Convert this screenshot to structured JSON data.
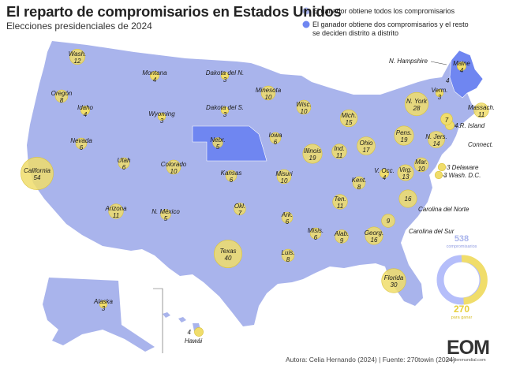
{
  "title": "El reparto de compromisarios en Estados Unidos",
  "subtitle": "Elecciones presidenciales de 2024",
  "legend": {
    "winner_all": "El ganador obtiene todos los compromisarios",
    "district": "El ganador obtiene dos compromisarios y el resto se deciden distrito a distrito"
  },
  "colors": {
    "map": "#a9b4ec",
    "map_border": "#ffffff",
    "district": "#6f86f1",
    "circle": "#f0dd6b",
    "circle_stroke": "#d9c23a",
    "total_ring": "#b5befa"
  },
  "states": [
    {
      "name": "Wash.",
      "value": "12"
    },
    {
      "name": "Oregón",
      "value": "8"
    },
    {
      "name": "Idaho",
      "value": "4"
    },
    {
      "name": "Montana",
      "value": "4"
    },
    {
      "name": "Dakota del N.",
      "value": "3"
    },
    {
      "name": "Minesota",
      "value": "10"
    },
    {
      "name": "Wyoming",
      "value": "3"
    },
    {
      "name": "Dakota del S.",
      "value": "3"
    },
    {
      "name": "Wisc.",
      "value": "10"
    },
    {
      "name": "Mich.",
      "value": "15"
    },
    {
      "name": "N. York",
      "value": "28"
    },
    {
      "name": "Verm.",
      "value": "3"
    },
    {
      "name": "Maine",
      "value": "4"
    },
    {
      "name": "Massach.",
      "value": "11"
    },
    {
      "name": "R. Island",
      "value": "4"
    },
    {
      "name": "Connect.",
      "value": "7"
    },
    {
      "name": "Nevada",
      "value": "6"
    },
    {
      "name": "Utah",
      "value": "6"
    },
    {
      "name": "Colorado",
      "value": "10"
    },
    {
      "name": "Nebr.",
      "value": "5"
    },
    {
      "name": "Iowa",
      "value": "6"
    },
    {
      "name": "Illinois",
      "value": "19"
    },
    {
      "name": "Ind.",
      "value": "11"
    },
    {
      "name": "Ohio",
      "value": "17"
    },
    {
      "name": "Pens.",
      "value": "19"
    },
    {
      "name": "N. Jers.",
      "value": "14"
    },
    {
      "name": "Mar.",
      "value": "10"
    },
    {
      "name": "Delaware",
      "value": "3"
    },
    {
      "name": "Wash. D.C.",
      "value": "3"
    },
    {
      "name": "California",
      "value": "54"
    },
    {
      "name": "Arizona",
      "value": "11"
    },
    {
      "name": "N. México",
      "value": "5"
    },
    {
      "name": "Kansas",
      "value": "6"
    },
    {
      "name": "Misuri",
      "value": "10"
    },
    {
      "name": "Okl.",
      "value": "7"
    },
    {
      "name": "Ark.",
      "value": "6"
    },
    {
      "name": "Kent.",
      "value": "8"
    },
    {
      "name": "V. Occ.",
      "value": "4"
    },
    {
      "name": "Virg.",
      "value": "13"
    },
    {
      "name": "Ten.",
      "value": "11"
    },
    {
      "name": "Carolina del Norte",
      "value": "16"
    },
    {
      "name": "Carolina del Sur",
      "value": "9"
    },
    {
      "name": "Texas",
      "value": "40"
    },
    {
      "name": "Misis.",
      "value": "6"
    },
    {
      "name": "Alab.",
      "value": "9"
    },
    {
      "name": "Georg.",
      "value": "16"
    },
    {
      "name": "Luis.",
      "value": "8"
    },
    {
      "name": "Florida",
      "value": "30"
    },
    {
      "name": "Alaska",
      "value": "3"
    },
    {
      "name": "Hawái",
      "value": "4"
    },
    {
      "name": "N. Hampshire",
      "value": "4"
    }
  ],
  "totals": {
    "total": "538",
    "total_label": "compromisarios",
    "needed": "270",
    "needed_label": "para ganar"
  },
  "source": "Autora: Celia Hernando (2024) | Fuente: 270towin (2024)",
  "logo": {
    "mark": "EOM",
    "site": "elordenmundial.com"
  }
}
